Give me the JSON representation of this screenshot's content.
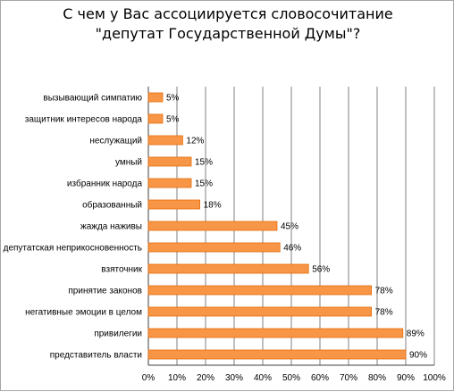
{
  "chart_data": {
    "type": "bar",
    "orientation": "horizontal",
    "title_lines": [
      "С чем у Вас ассоциируется словосочитание",
      "\"депутат Государственной Думы\"?"
    ],
    "categories": [
      "вызывающий симпатию",
      "защитник интересов народа",
      "неслужащий",
      "умный",
      "избранник народа",
      "образованный",
      "жажда наживы",
      "депутатская неприкосновенность",
      "взяточник",
      "принятие законов",
      "негативные эмоции в целом",
      "привилегии",
      "представитель власти"
    ],
    "values": [
      5,
      5,
      12,
      15,
      15,
      18,
      45,
      46,
      56,
      78,
      78,
      89,
      90
    ],
    "value_labels": [
      "5%",
      "5%",
      "12%",
      "15%",
      "15%",
      "18%",
      "45%",
      "46%",
      "56%",
      "78%",
      "78%",
      "89%",
      "90%"
    ],
    "xlim": [
      0,
      100
    ],
    "x_ticks": [
      0,
      10,
      20,
      30,
      40,
      50,
      60,
      70,
      80,
      90,
      100
    ],
    "x_tick_labels": [
      "0%",
      "10%",
      "20%",
      "30%",
      "40%",
      "50%",
      "60%",
      "70%",
      "80%",
      "90%",
      "100%"
    ],
    "xlabel": "",
    "ylabel": "",
    "grid": "vertical",
    "legend": "none",
    "bar_color": "#f79646",
    "bar_edge_color": "#e46c0a",
    "grid_color": "#808080",
    "text_color": "#000000"
  }
}
